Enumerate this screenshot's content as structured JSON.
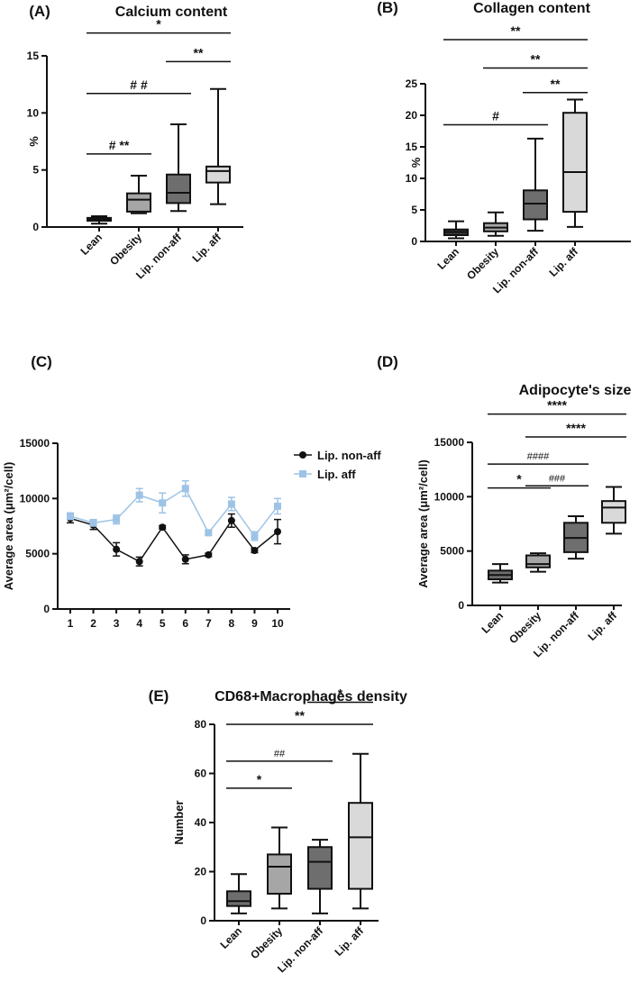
{
  "chart_data": [
    {
      "id": "A",
      "panel_label": "(A)",
      "type": "box",
      "title": "Calcium content",
      "ylabel": "%",
      "ylim": [
        0,
        15
      ],
      "yticks": [
        0,
        5,
        10,
        15
      ],
      "categories": [
        "Lean",
        "Obesity",
        "Lip. non-aff",
        "Lip. aff"
      ],
      "boxes": [
        {
          "min": 0.3,
          "q1": 0.55,
          "median": 0.7,
          "q3": 0.8,
          "max": 0.95,
          "fill": "#3a3a3a"
        },
        {
          "min": 1.2,
          "q1": 1.35,
          "median": 2.4,
          "q3": 2.95,
          "max": 4.5,
          "fill": "#a6a6a6"
        },
        {
          "min": 1.4,
          "q1": 2.1,
          "median": 3.0,
          "q3": 4.6,
          "max": 9.0,
          "fill": "#6e6e6e"
        },
        {
          "min": 2.0,
          "q1": 3.9,
          "median": 4.9,
          "q3": 5.3,
          "max": 12.1,
          "fill": "#d9d9d9"
        }
      ],
      "annotations": [
        {
          "text": "*",
          "from": 0,
          "to": 3,
          "y": 17.0
        },
        {
          "text": "**",
          "from": 2,
          "to": 3,
          "y": 14.5
        },
        {
          "text": "# #",
          "from": 0,
          "to": 2,
          "y": 11.7
        },
        {
          "text": "# **",
          "from": 0,
          "to": 1,
          "y": 6.4
        }
      ]
    },
    {
      "id": "B",
      "panel_label": "(B)",
      "type": "box",
      "title": "Collagen content",
      "ylabel": "%",
      "ylim": [
        0,
        25
      ],
      "yticks": [
        0,
        5,
        10,
        15,
        20,
        25
      ],
      "categories": [
        "Lean",
        "Obesity",
        "Lip. non-aff",
        "Lip. aff"
      ],
      "boxes": [
        {
          "min": 0.5,
          "q1": 1.0,
          "median": 1.5,
          "q3": 1.9,
          "max": 3.2,
          "fill": "#3a3a3a"
        },
        {
          "min": 0.9,
          "q1": 1.6,
          "median": 2.2,
          "q3": 2.9,
          "max": 4.6,
          "fill": "#a6a6a6"
        },
        {
          "min": 1.7,
          "q1": 3.5,
          "median": 6.0,
          "q3": 8.1,
          "max": 16.3,
          "fill": "#6e6e6e"
        },
        {
          "min": 2.3,
          "q1": 4.7,
          "median": 11.0,
          "q3": 20.4,
          "max": 22.5,
          "fill": "#d9d9d9"
        }
      ],
      "annotations": [
        {
          "text": "**",
          "from": 0,
          "to": 3,
          "y": 32.0
        },
        {
          "text": "**",
          "from": 1,
          "to": 3,
          "y": 27.5
        },
        {
          "text": "**",
          "from": 2,
          "to": 3,
          "y": 23.6
        },
        {
          "text": "#",
          "from": 0,
          "to": 2,
          "y": 18.5
        }
      ]
    },
    {
      "id": "C",
      "panel_label": "(C)",
      "type": "line",
      "title": "",
      "ylabel": "Average area (μm²/cell)",
      "ylim": [
        0,
        15000
      ],
      "yticks": [
        0,
        5000,
        10000,
        15000
      ],
      "x": [
        1,
        2,
        3,
        4,
        5,
        6,
        7,
        8,
        9,
        10
      ],
      "series": [
        {
          "name": "Lip. non-aff",
          "color": "#111111",
          "marker": "circle",
          "values": [
            8200,
            7600,
            5400,
            4300,
            7400,
            4500,
            4900,
            8000,
            5300,
            7000
          ],
          "errors": [
            400,
            400,
            600,
            400,
            150,
            400,
            150,
            600,
            200,
            1100
          ]
        },
        {
          "name": "Lip. aff",
          "color": "#9dc3e6",
          "marker": "square",
          "values": [
            8400,
            7800,
            8100,
            10300,
            9600,
            10900,
            6900,
            9500,
            6600,
            9300
          ],
          "errors": [
            300,
            300,
            400,
            600,
            900,
            700,
            200,
            600,
            400,
            700
          ]
        }
      ]
    },
    {
      "id": "D",
      "panel_label": "(D)",
      "type": "box",
      "title": "Adipocyte's size",
      "ylabel": "Average area (μm²/cell)",
      "ylim": [
        0,
        15000
      ],
      "yticks": [
        0,
        5000,
        10000,
        15000
      ],
      "categories": [
        "Lean",
        "Obesity",
        "Lip. non-aff",
        "Lip. aff"
      ],
      "boxes": [
        {
          "min": 2100,
          "q1": 2400,
          "median": 2800,
          "q3": 3200,
          "max": 3800,
          "fill": "#6e6e6e"
        },
        {
          "min": 3100,
          "q1": 3500,
          "median": 3800,
          "q3": 4600,
          "max": 4800,
          "fill": "#a6a6a6"
        },
        {
          "min": 4300,
          "q1": 4900,
          "median": 6200,
          "q3": 7600,
          "max": 8200,
          "fill": "#6e6e6e"
        },
        {
          "min": 6600,
          "q1": 7600,
          "median": 9000,
          "q3": 9600,
          "max": 10900,
          "fill": "#d9d9d9"
        }
      ],
      "annotations": [
        {
          "text": "****",
          "from": 0,
          "to": 3,
          "y": 17600
        },
        {
          "text": "****",
          "from": 1,
          "to": 3,
          "y": 15500
        },
        {
          "text": "####",
          "from": 0,
          "to": 2,
          "y": 13000
        },
        {
          "text": "###",
          "from": 1,
          "to": 2,
          "y": 11000
        },
        {
          "text": "*",
          "from": 0,
          "to": 1,
          "y": 10800
        }
      ]
    },
    {
      "id": "E",
      "panel_label": "(E)",
      "type": "box",
      "title": "CD68+Macrophages density",
      "ylabel": "Number",
      "ylim": [
        0,
        80
      ],
      "yticks": [
        0,
        20,
        40,
        60,
        80
      ],
      "categories": [
        "Lean",
        "Obesity",
        "Lip. non-aff",
        "Lip. aff"
      ],
      "boxes": [
        {
          "min": 3,
          "q1": 6,
          "median": 8,
          "q3": 12,
          "max": 19,
          "fill": "#6e6e6e"
        },
        {
          "min": 5,
          "q1": 11,
          "median": 22,
          "q3": 27,
          "max": 38,
          "fill": "#a6a6a6"
        },
        {
          "min": 3,
          "q1": 13,
          "median": 24,
          "q3": 30,
          "max": 33,
          "fill": "#6e6e6e"
        },
        {
          "min": 5,
          "q1": 13,
          "median": 34,
          "q3": 48,
          "max": 68,
          "fill": "#d9d9d9"
        }
      ],
      "annotations": [
        {
          "text": "*",
          "from": 2,
          "to": 3,
          "y": 89
        },
        {
          "text": "**",
          "from": 0,
          "to": 3,
          "y": 80
        },
        {
          "text": "##",
          "from": 0,
          "to": 2,
          "y": 65
        },
        {
          "text": "*",
          "from": 0,
          "to": 1,
          "y": 54
        }
      ]
    }
  ]
}
